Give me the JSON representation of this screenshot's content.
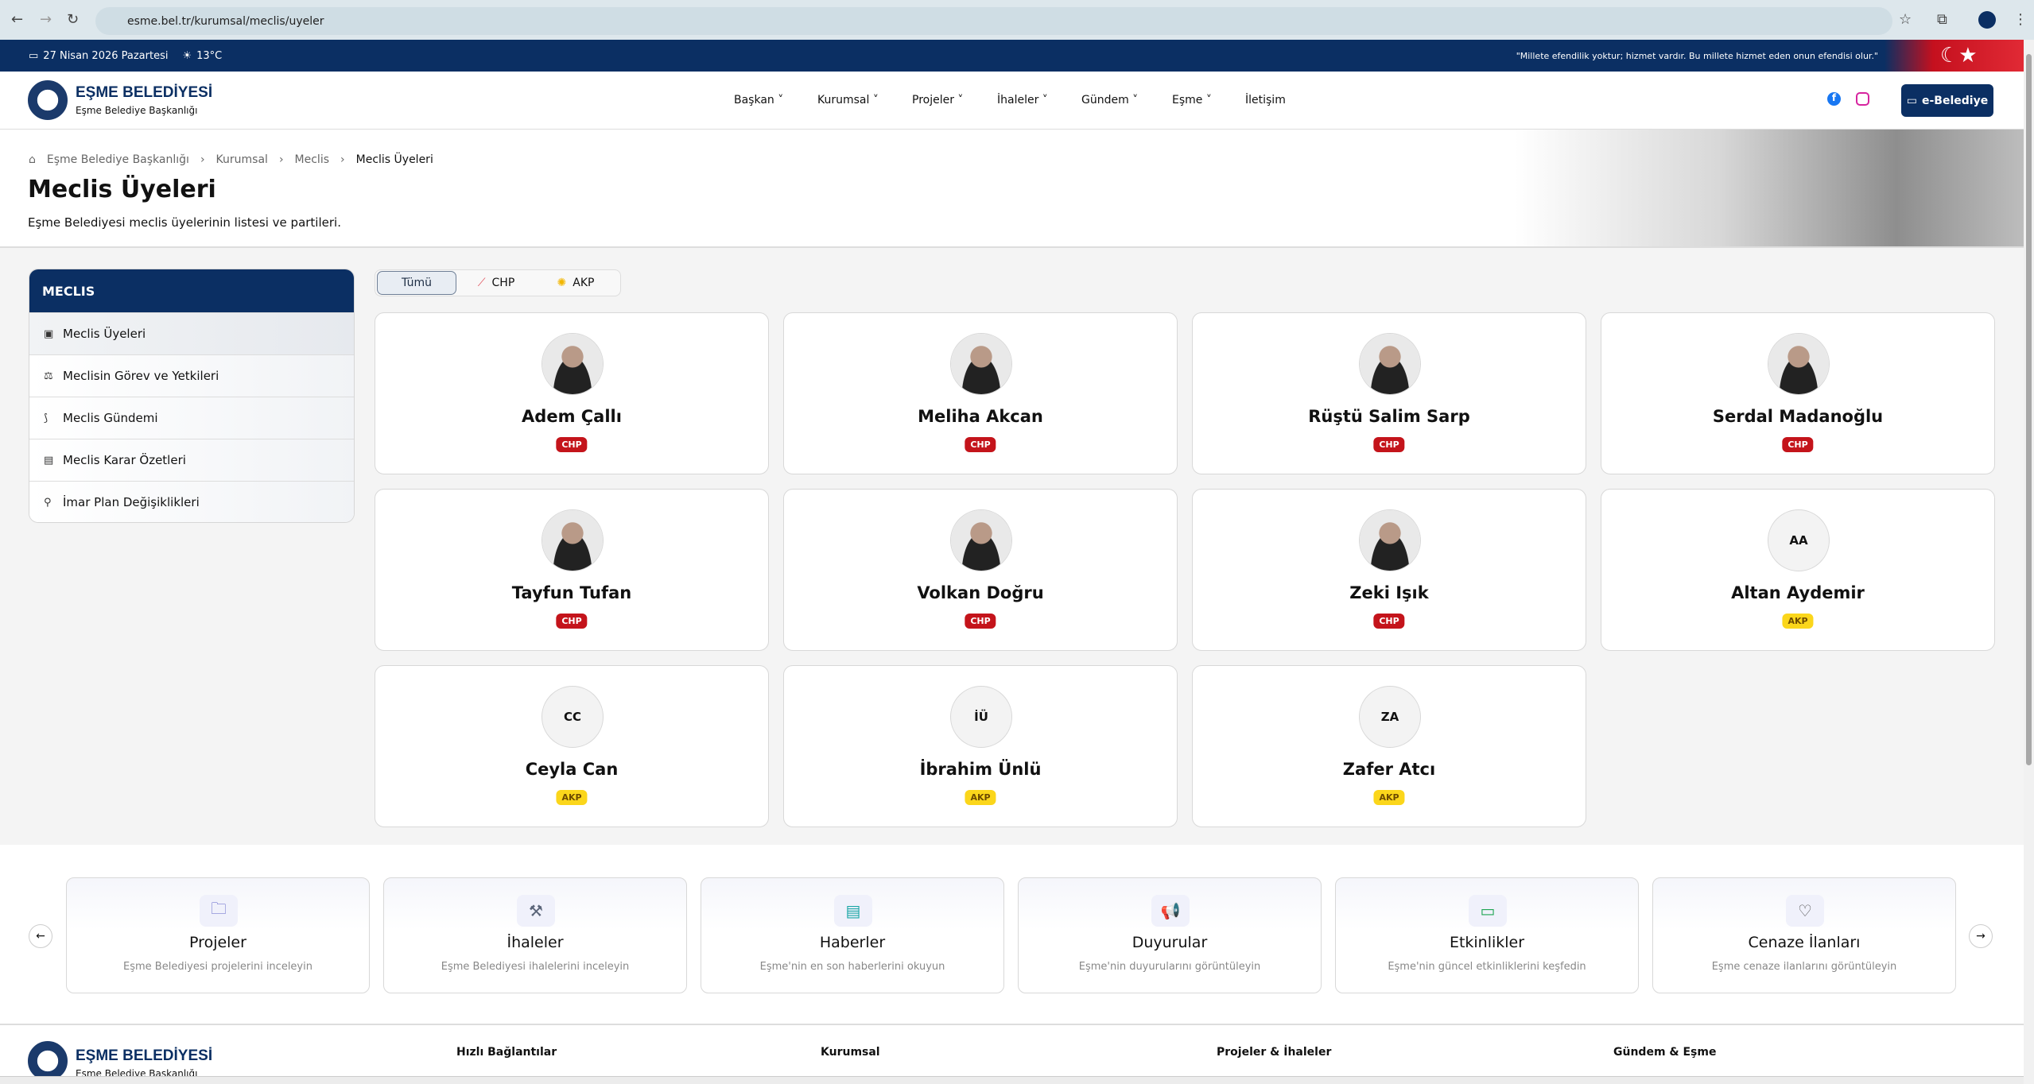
{
  "browser": {
    "url": "esme.bel.tr/kurumsal/meclis/uyeler"
  },
  "topbar": {
    "date": "27 Nisan 2026 Pazartesi",
    "temperature": "13°C",
    "quote": "\"Millete efendilik yoktur; hizmet vardır. Bu millete hizmet eden onun efendisi olur.\""
  },
  "header": {
    "logo_title": "EŞME BELEDİYESİ",
    "logo_subtitle": "Eşme Belediye Başkanlığı",
    "nav": [
      "Başkan",
      "Kurumsal",
      "Projeler",
      "İhaleler",
      "Gündem",
      "Eşme",
      "İletişim"
    ],
    "ebelediye": "e-Belediye"
  },
  "breadcrumb": [
    "Eşme Belediye Başkanlığı",
    "Kurumsal",
    "Meclis",
    "Meclis Üyeleri"
  ],
  "page": {
    "title": "Meclis Üyeleri",
    "subtitle": "Eşme Belediyesi meclis üyelerinin listesi ve partileri."
  },
  "sidebar": {
    "title": "MECLIS",
    "items": [
      {
        "label": "Meclis Üyeleri",
        "icon": "id-badge-icon"
      },
      {
        "label": "Meclisin Görev ve Yetkileri",
        "icon": "scale-icon"
      },
      {
        "label": "Meclis Gündemi",
        "icon": "rss-icon"
      },
      {
        "label": "Meclis Karar Özetleri",
        "icon": "scroll-icon"
      },
      {
        "label": "İmar Plan Değişiklikleri",
        "icon": "map-pin-icon"
      }
    ]
  },
  "filters": [
    "Tümü",
    "CHP",
    "AKP"
  ],
  "members": [
    {
      "name": "Adem Çallı",
      "party": "CHP",
      "initials": ""
    },
    {
      "name": "Meliha Akcan",
      "party": "CHP",
      "initials": ""
    },
    {
      "name": "Rüştü Salim Sarp",
      "party": "CHP",
      "initials": ""
    },
    {
      "name": "Serdal Madanoğlu",
      "party": "CHP",
      "initials": ""
    },
    {
      "name": "Tayfun Tufan",
      "party": "CHP",
      "initials": ""
    },
    {
      "name": "Volkan Doğru",
      "party": "CHP",
      "initials": ""
    },
    {
      "name": "Zeki Işık",
      "party": "CHP",
      "initials": ""
    },
    {
      "name": "Altan Aydemir",
      "party": "AKP",
      "initials": "AA"
    },
    {
      "name": "Ceyla Can",
      "party": "AKP",
      "initials": "CC"
    },
    {
      "name": "İbrahim Ünlü",
      "party": "AKP",
      "initials": "İÜ"
    },
    {
      "name": "Zafer Atcı",
      "party": "AKP",
      "initials": "ZA"
    }
  ],
  "quick_links": [
    {
      "title": "Projeler",
      "desc": "Eşme Belediyesi projelerini inceleyin",
      "icon": "folder-icon",
      "color": "#5b5fc7"
    },
    {
      "title": "İhaleler",
      "desc": "Eşme Belediyesi ihalelerini inceleyin",
      "icon": "gavel-icon",
      "color": "#5a6478"
    },
    {
      "title": "Haberler",
      "desc": "Eşme'nin en son haberlerini okuyun",
      "icon": "newspaper-icon",
      "color": "#1aa6a6"
    },
    {
      "title": "Duyurular",
      "desc": "Eşme'nin duyurularını görüntüleyin",
      "icon": "megaphone-icon",
      "color": "#17a58a"
    },
    {
      "title": "Etkinlikler",
      "desc": "Eşme'nin güncel etkinliklerini keşfedin",
      "icon": "calendar-icon",
      "color": "#1fa552"
    },
    {
      "title": "Cenaze İlanları",
      "desc": "Eşme cenaze ilanlarını görüntüleyin",
      "icon": "hand-heart-icon",
      "color": "#555"
    }
  ],
  "footer": {
    "columns": [
      "Hızlı Bağlantılar",
      "Kurumsal",
      "Projeler & İhaleler",
      "Gündem & Eşme"
    ]
  },
  "colors": {
    "navy": "#0b2f63",
    "chp": "#c4141b",
    "akp": "#fbd61b"
  }
}
